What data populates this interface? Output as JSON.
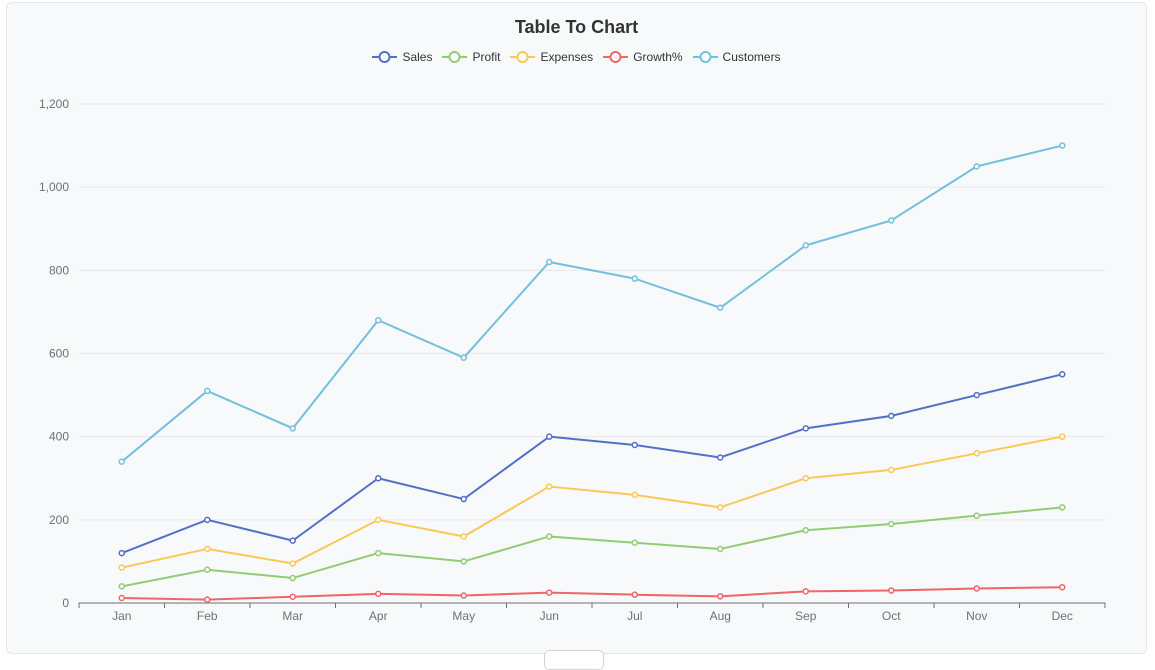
{
  "chart_data": {
    "type": "line",
    "title": "Table To Chart",
    "categories": [
      "Jan",
      "Feb",
      "Mar",
      "Apr",
      "May",
      "Jun",
      "Jul",
      "Aug",
      "Sep",
      "Oct",
      "Nov",
      "Dec"
    ],
    "ylim": [
      0,
      1200
    ],
    "yticks": [
      "0",
      "200",
      "400",
      "600",
      "800",
      "1,000",
      "1,200"
    ],
    "grid": true,
    "legend_position": "top",
    "series": [
      {
        "name": "Sales",
        "color": "#5470c6",
        "values": [
          120,
          200,
          150,
          300,
          250,
          400,
          380,
          350,
          420,
          450,
          500,
          550
        ]
      },
      {
        "name": "Profit",
        "color": "#91cc75",
        "values": [
          40,
          80,
          60,
          120,
          100,
          160,
          145,
          130,
          175,
          190,
          210,
          230
        ]
      },
      {
        "name": "Expenses",
        "color": "#fac858",
        "values": [
          85,
          130,
          95,
          200,
          160,
          280,
          260,
          230,
          300,
          320,
          360,
          400
        ]
      },
      {
        "name": "Growth%",
        "color": "#ee6666",
        "values": [
          12,
          8,
          15,
          22,
          18,
          25,
          20,
          16,
          28,
          30,
          35,
          38
        ]
      },
      {
        "name": "Customers",
        "color": "#73c0de",
        "values": [
          340,
          510,
          420,
          680,
          590,
          820,
          780,
          710,
          860,
          920,
          1050,
          1100
        ]
      }
    ]
  }
}
